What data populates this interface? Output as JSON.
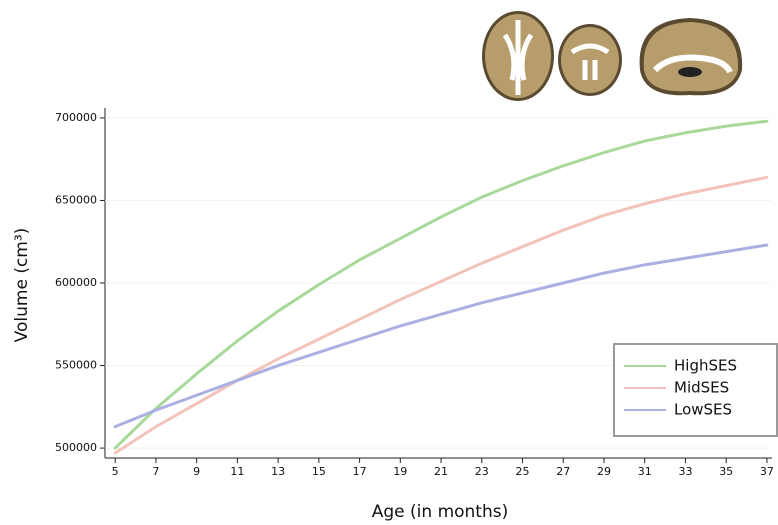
{
  "chart_data": {
    "type": "line",
    "xlabel": "Age (in months)",
    "ylabel": "Volume (cm³)",
    "x": [
      5,
      7,
      9,
      11,
      13,
      15,
      17,
      19,
      21,
      23,
      25,
      27,
      29,
      31,
      33,
      35,
      37
    ],
    "series": [
      {
        "name": "HighSES",
        "color": "#a8d99b",
        "values": [
          500000,
          524000,
          545000,
          565000,
          583000,
          599000,
          614000,
          627000,
          640000,
          652000,
          662000,
          671000,
          679000,
          686000,
          691000,
          695000,
          698000
        ]
      },
      {
        "name": "MidSES",
        "color": "#f3c3b9",
        "values": [
          497000,
          513000,
          527000,
          541000,
          554000,
          566000,
          578000,
          590000,
          601000,
          612000,
          622000,
          632000,
          641000,
          648000,
          654000,
          659000,
          664000
        ]
      },
      {
        "name": "LowSES",
        "color": "#aab0e2",
        "values": [
          513000,
          523000,
          532000,
          541000,
          550000,
          558000,
          566000,
          574000,
          581000,
          588000,
          594000,
          600000,
          606000,
          611000,
          615000,
          619000,
          623000
        ]
      }
    ],
    "xlim": [
      4.5,
      37.2
    ],
    "ylim": [
      494000,
      706000
    ],
    "xticks": [
      5,
      7,
      9,
      11,
      13,
      15,
      17,
      19,
      21,
      23,
      25,
      27,
      29,
      31,
      33,
      35,
      37
    ],
    "yticks": [
      500000,
      550000,
      600000,
      650000,
      700000
    ],
    "grid": true,
    "legend": "lower right"
  }
}
